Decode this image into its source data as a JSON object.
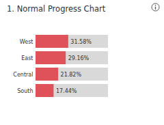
{
  "chart_data": {
    "type": "bar",
    "title": "1. Normal Progress Chart",
    "orientation": "horizontal",
    "categories": [
      "West",
      "East",
      "Central",
      "South"
    ],
    "values": [
      31.58,
      29.16,
      21.82,
      17.44
    ],
    "value_labels": [
      "31.58%",
      "29.16%",
      "21.82%",
      "17.44%"
    ],
    "color": "#e05259",
    "xlim": [
      0,
      70
    ],
    "data_labels": true,
    "tick_labels": "y",
    "grid": false
  }
}
